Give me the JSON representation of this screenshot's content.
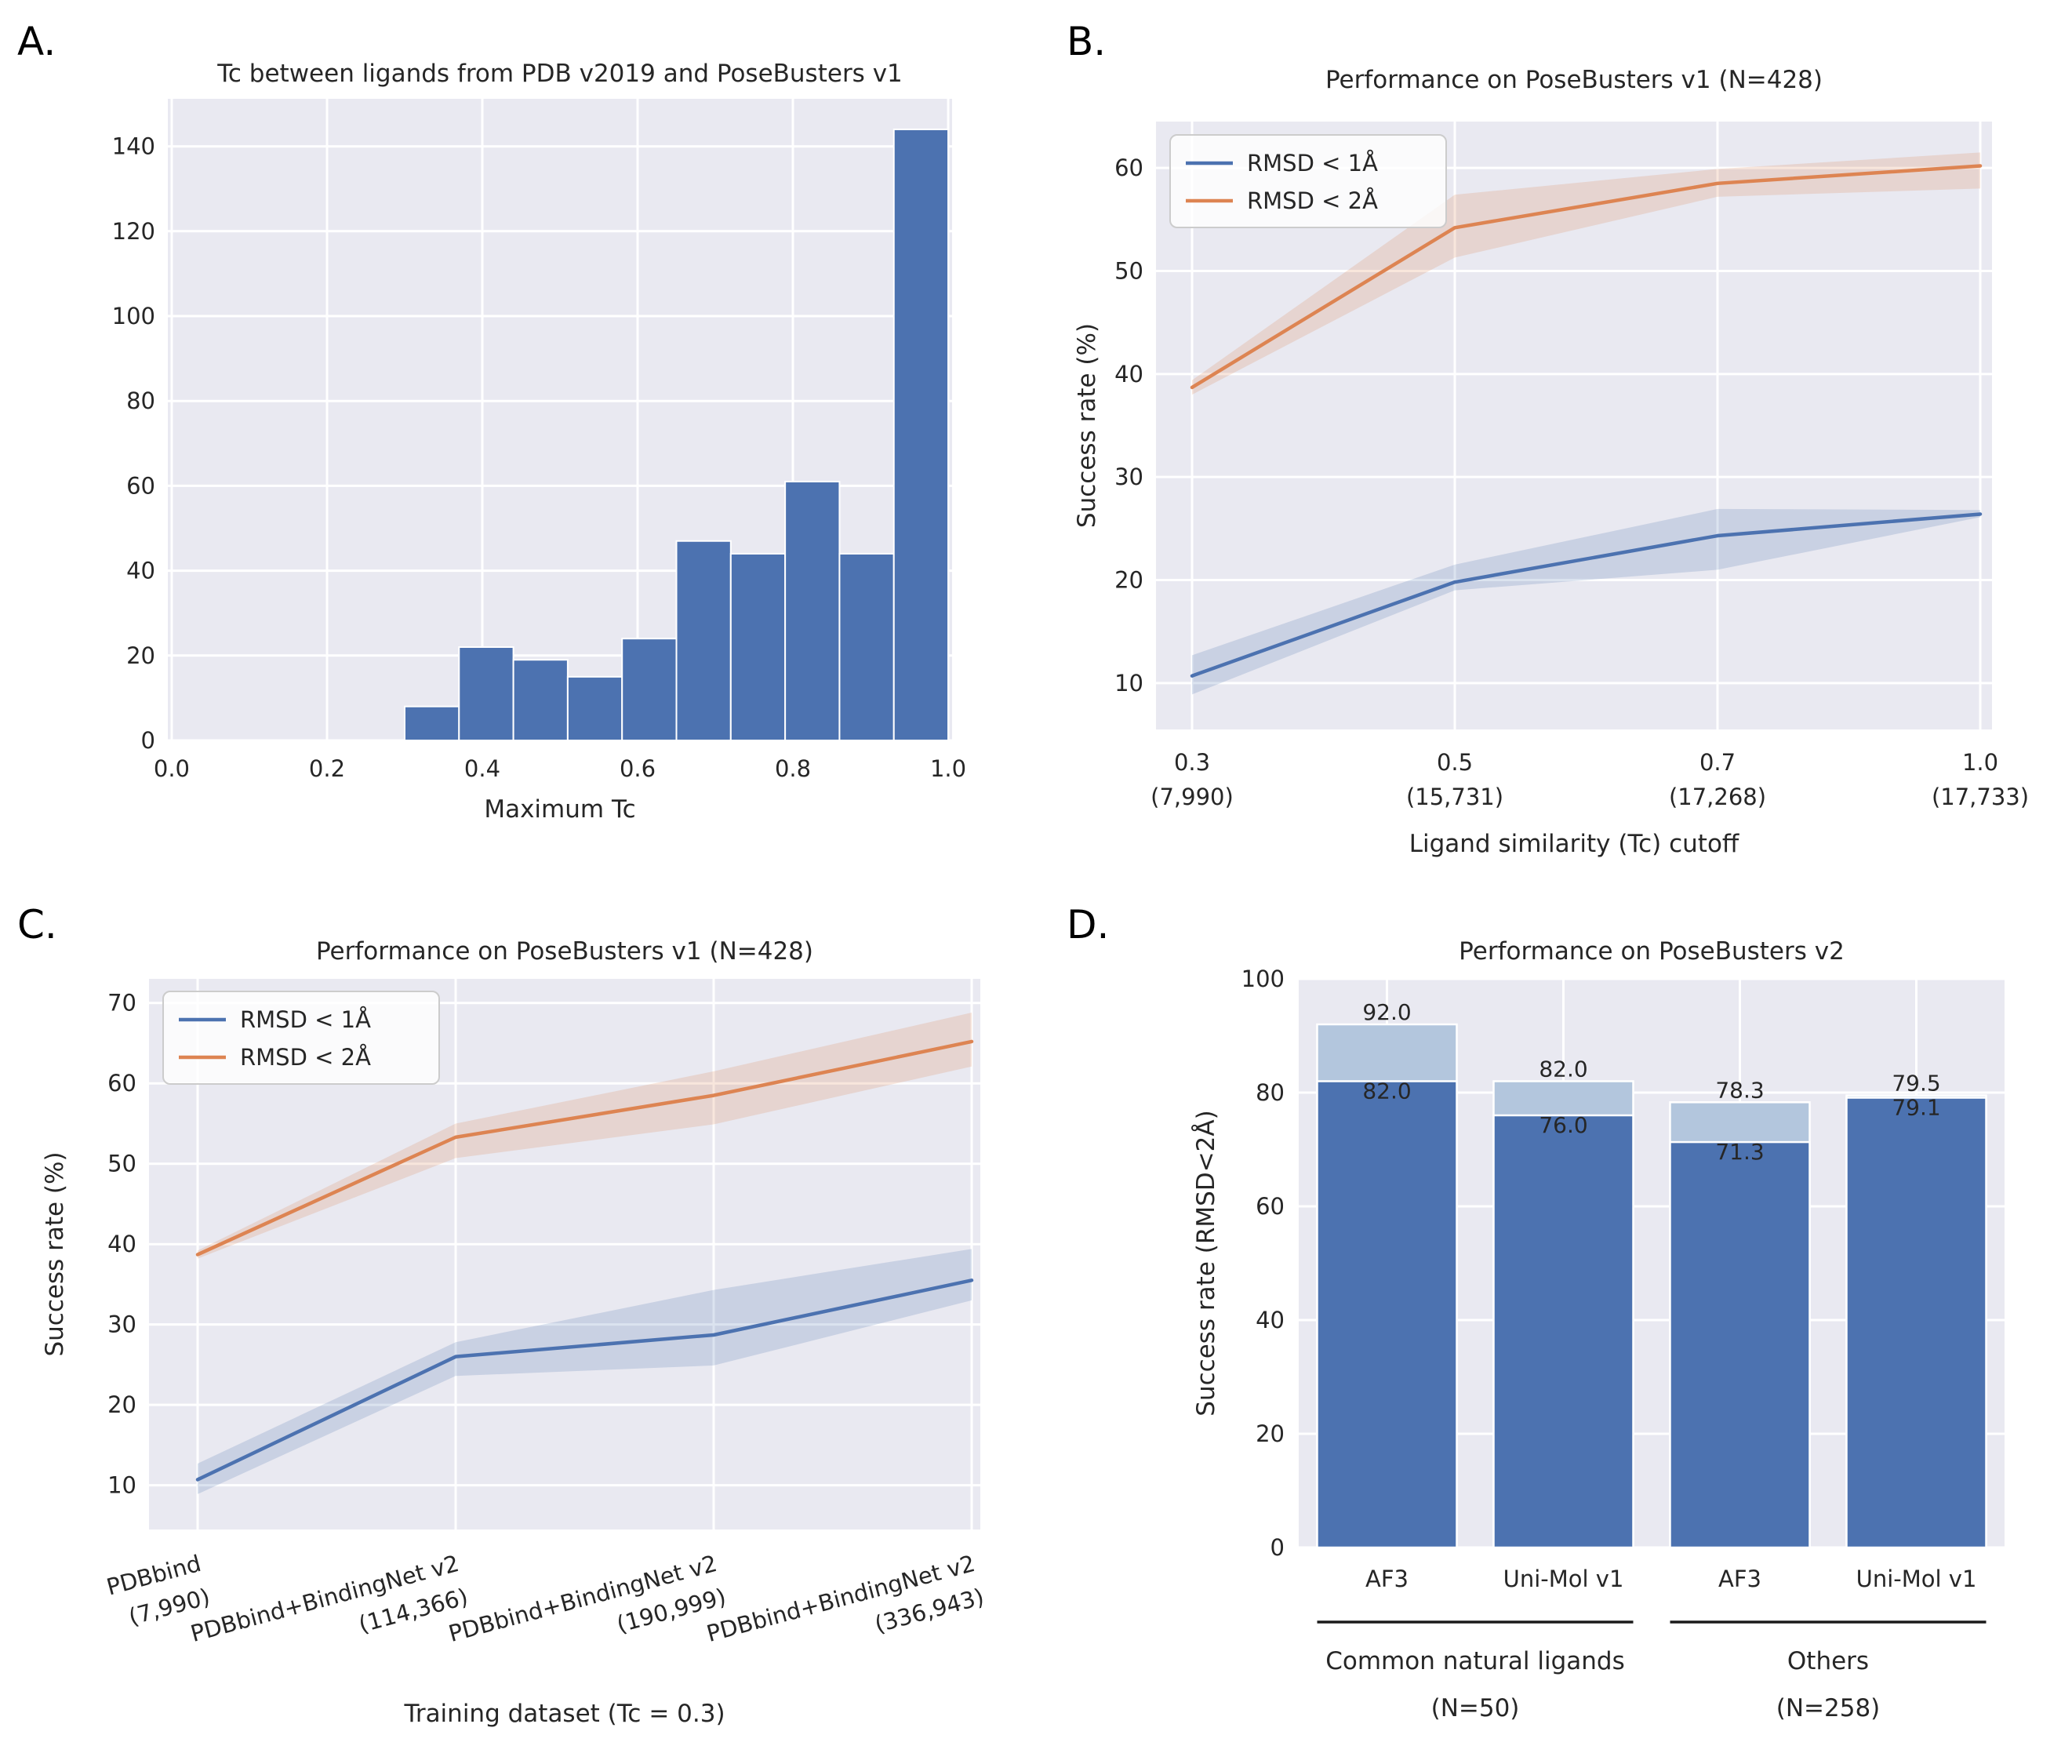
{
  "figure": {
    "background": "#ffffff",
    "description": "Four-panel matplotlib/seaborn figure about ligand similarity and docking performance"
  },
  "colors": {
    "blue": "#4c72b0",
    "orange": "#dd8452",
    "light_blue": "#b3c6dd",
    "axes_bg": "#e9e9f1",
    "grid": "#ffffff",
    "text": "#262626",
    "letter": "#000000",
    "legend_border": "#cccccc",
    "group_line": "#1a1a1a"
  },
  "chart_data": [
    {
      "panel_label": "A.",
      "type": "bar",
      "subtype": "histogram",
      "title": "Tc between ligands from PDB v2019 and PoseBusters v1",
      "xlabel": "Maximum Tc",
      "ylabel": "",
      "bin_edges": [
        0.3,
        0.37,
        0.44,
        0.51,
        0.58,
        0.65,
        0.72,
        0.79,
        0.86,
        0.93,
        1.0
      ],
      "values": [
        8,
        22,
        19,
        15,
        24,
        47,
        44,
        61,
        44,
        144
      ],
      "xticks": [
        {
          "v": 0.0,
          "label": "0.0"
        },
        {
          "v": 0.2,
          "label": "0.2"
        },
        {
          "v": 0.4,
          "label": "0.4"
        },
        {
          "v": 0.6,
          "label": "0.6"
        },
        {
          "v": 0.8,
          "label": "0.8"
        },
        {
          "v": 1.0,
          "label": "1.0"
        }
      ],
      "yticks": [
        0,
        20,
        40,
        60,
        80,
        100,
        120,
        140
      ],
      "xlim": [
        -0.005,
        1.005
      ],
      "ylim": [
        0,
        151.2
      ],
      "grid": true
    },
    {
      "panel_label": "B.",
      "type": "line",
      "title": "Performance on PoseBusters v1 (N=428)",
      "xlabel": "Ligand similarity (Tc) cutoff",
      "ylabel": "Success rate (%)",
      "categories": [
        [
          "0.3",
          "(7,990)"
        ],
        [
          "0.5",
          "(15,731)"
        ],
        [
          "0.7",
          "(17,268)"
        ],
        [
          "1.0",
          "(17,733)"
        ]
      ],
      "series": [
        {
          "name": "RMSD < 1Å",
          "color": "#4c72b0",
          "values": [
            10.7,
            19.8,
            24.3,
            26.4
          ],
          "band_lower": [
            8.9,
            19.0,
            21.0,
            26.1
          ],
          "band_upper": [
            12.7,
            21.5,
            26.9,
            26.8
          ]
        },
        {
          "name": "RMSD < 2Å",
          "color": "#dd8452",
          "values": [
            38.7,
            54.2,
            58.5,
            60.2
          ],
          "band_lower": [
            38.0,
            51.3,
            57.2,
            58.0
          ],
          "band_upper": [
            39.4,
            57.4,
            59.9,
            61.5
          ]
        }
      ],
      "yticks": [
        10,
        20,
        30,
        40,
        50,
        60
      ],
      "ylim": [
        5.5,
        64.5
      ],
      "legend_position": "upper left",
      "grid": true
    },
    {
      "panel_label": "C.",
      "type": "line",
      "title": "Performance on PoseBusters v1 (N=428)",
      "xlabel": "Training dataset (Tc = 0.3)",
      "ylabel": "Success rate (%)",
      "categories": [
        [
          "PDBbind",
          "(7,990)"
        ],
        [
          "PDBbind+BindingNet v2",
          "(114,366)"
        ],
        [
          "PDBbind+BindingNet v2",
          "(190,999)"
        ],
        [
          "PDBbind+BindingNet v2",
          "(336,943)"
        ]
      ],
      "tick_rotation_deg": -15,
      "series": [
        {
          "name": "RMSD < 1Å",
          "color": "#4c72b0",
          "values": [
            10.7,
            26.0,
            28.7,
            35.5
          ],
          "band_lower": [
            8.9,
            23.6,
            24.9,
            33.0
          ],
          "band_upper": [
            12.7,
            27.8,
            34.3,
            39.4
          ]
        },
        {
          "name": "RMSD < 2Å",
          "color": "#dd8452",
          "values": [
            38.7,
            53.3,
            58.5,
            65.2
          ],
          "band_lower": [
            38.2,
            50.7,
            54.9,
            62.1
          ],
          "band_upper": [
            39.2,
            55.0,
            61.5,
            68.8
          ]
        }
      ],
      "yticks": [
        10,
        20,
        30,
        40,
        50,
        60,
        70
      ],
      "ylim": [
        4.5,
        73
      ],
      "legend_position": "upper left",
      "grid": true
    },
    {
      "panel_label": "D.",
      "type": "bar",
      "subtype": "overlaid-grouped-bar",
      "title": "Performance on PoseBusters v2",
      "xlabel": "",
      "ylabel": "Success rate (RMSD<2Å)",
      "categories": [
        "AF3",
        "Uni-Mol v1",
        "AF3",
        "Uni-Mol v1"
      ],
      "series": [
        {
          "name": "background-bar",
          "color": "#b3c6dd",
          "values": [
            92.0,
            82.0,
            78.3,
            79.5
          ]
        },
        {
          "name": "foreground-bar",
          "color": "#4c72b0",
          "values": [
            82.0,
            76.0,
            71.3,
            79.1
          ]
        }
      ],
      "groups": [
        {
          "label": "Common natural ligands",
          "sublabel": "(N=50)",
          "bars": [
            0,
            1
          ]
        },
        {
          "label": "Others",
          "sublabel": "(N=258)",
          "bars": [
            2,
            3
          ]
        }
      ],
      "yticks": [
        0,
        20,
        40,
        60,
        80,
        100
      ],
      "ylim": [
        0,
        100
      ],
      "grid": true
    }
  ]
}
